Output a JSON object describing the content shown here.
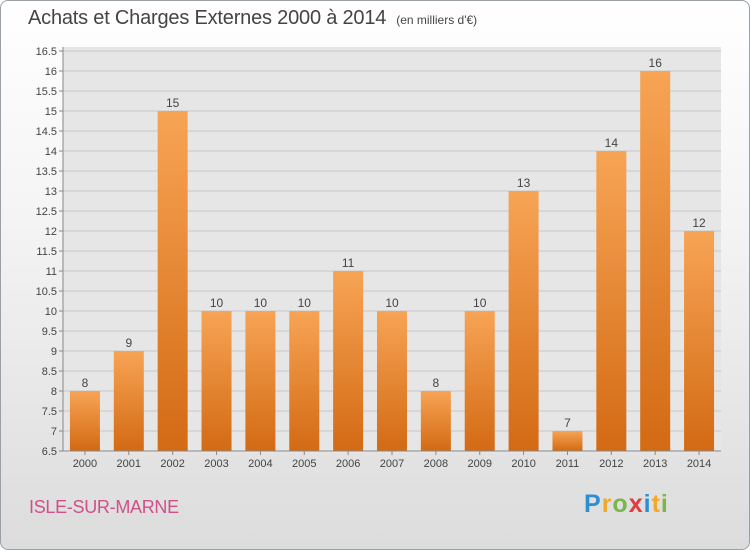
{
  "header": {
    "title": "Achats et Charges Externes 2000 à 2014",
    "subtitle": "(en milliers d'€)"
  },
  "commune": "ISLE-SUR-MARNE",
  "logo": {
    "letters": [
      "P",
      "r",
      "o",
      "x",
      "i",
      "t",
      "i"
    ],
    "colors": [
      "#2c8fd6",
      "#f0a92c",
      "#7ab648",
      "#e23b3b",
      "#2c8fd6",
      "#f0a92c",
      "#7ab648"
    ]
  },
  "chart_data": {
    "type": "bar",
    "categories": [
      "2000",
      "2001",
      "2002",
      "2003",
      "2004",
      "2005",
      "2006",
      "2007",
      "2008",
      "2009",
      "2010",
      "2011",
      "2012",
      "2013",
      "2014"
    ],
    "values": [
      8,
      9,
      15,
      10,
      10,
      10,
      11,
      10,
      8,
      10,
      13,
      7,
      14,
      16,
      12
    ],
    "title": "Achats et Charges Externes 2000 à 2014",
    "ylim": [
      6.5,
      16.5
    ],
    "yticks": [
      "6.5",
      "7",
      "7.5",
      "8",
      "8.5",
      "9",
      "9.5",
      "10",
      "10.5",
      "11",
      "11.5",
      "12",
      "12.5",
      "13",
      "13.5",
      "14",
      "14.5",
      "15",
      "15.5",
      "16",
      "16.5"
    ],
    "grid": true,
    "bar_color": "#f08a2a"
  }
}
